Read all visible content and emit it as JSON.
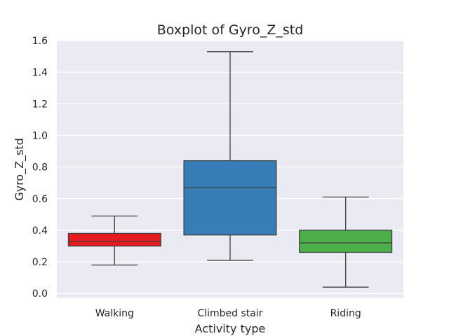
{
  "chart_data": {
    "type": "box",
    "title": "Boxplot of Gyro_Z_std",
    "xlabel": "Activity type",
    "ylabel": "Gyro_Z_std",
    "ylim": [
      -0.03,
      1.6
    ],
    "yticks": [
      "0.0",
      "0.2",
      "0.4",
      "0.6",
      "0.8",
      "1.0",
      "1.2",
      "1.4",
      "1.6"
    ],
    "grid": true,
    "categories": [
      "Walking",
      "Climbed stair",
      "Riding"
    ],
    "boxes": [
      {
        "category": "Walking",
        "whisker_low": 0.18,
        "q1": 0.3,
        "median": 0.33,
        "q3": 0.38,
        "whisker_high": 0.49,
        "color": "#e41a1c"
      },
      {
        "category": "Climbed stair",
        "whisker_low": 0.21,
        "q1": 0.37,
        "median": 0.67,
        "q3": 0.84,
        "whisker_high": 1.53,
        "color": "#377eb8"
      },
      {
        "category": "Riding",
        "whisker_low": 0.04,
        "q1": 0.26,
        "median": 0.32,
        "q3": 0.4,
        "whisker_high": 0.61,
        "color": "#4daf4a"
      }
    ],
    "colors": {
      "plot_background": "#eaeaf2",
      "grid": "#ffffff",
      "line": "#3f3f3f"
    }
  }
}
